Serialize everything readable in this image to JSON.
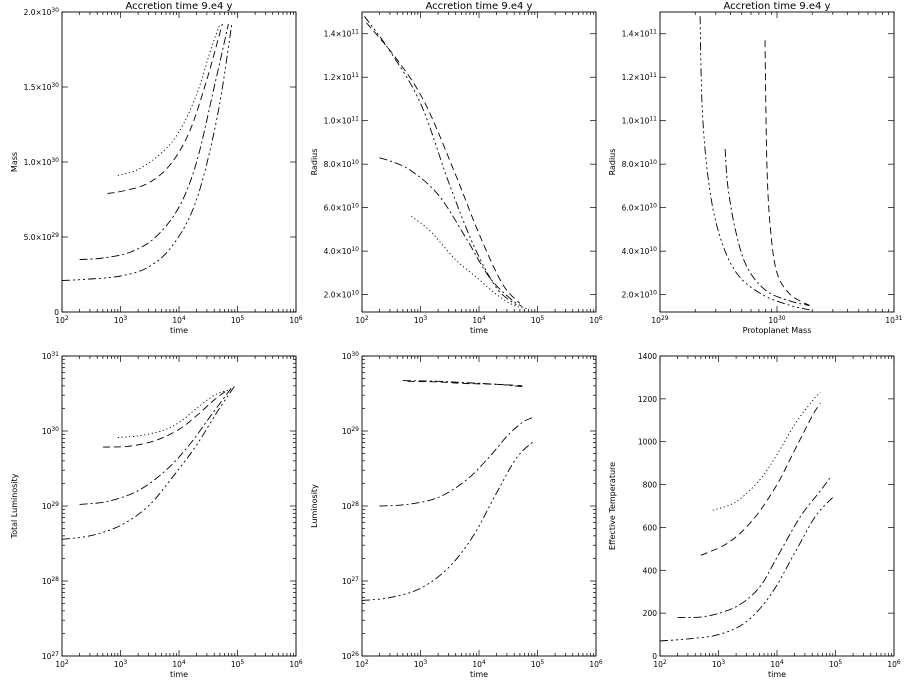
{
  "chart_data": [
    {
      "type": "line",
      "title": "Accretion time 9.e4 y",
      "xlabel": "time",
      "ylabel": "Mass",
      "xscale": "log",
      "yscale": "linear",
      "xlim": [
        100,
        1000000
      ],
      "ylim": [
        0,
        2e+30
      ],
      "xticks": [
        {
          "v": 100,
          "m": "10",
          "e": "2"
        },
        {
          "v": 1000,
          "m": "10",
          "e": "3"
        },
        {
          "v": 10000,
          "m": "10",
          "e": "4"
        },
        {
          "v": 100000,
          "m": "10",
          "e": "5"
        },
        {
          "v": 1000000,
          "m": "10",
          "e": "6"
        }
      ],
      "yticks": [
        {
          "v": 0,
          "m": "0",
          "e": ""
        },
        {
          "v": 5e+29,
          "m": "5.0×10",
          "e": "29"
        },
        {
          "v": 1e+30,
          "m": "1.0×10",
          "e": "30"
        },
        {
          "v": 1.5e+30,
          "m": "1.5×10",
          "e": "30"
        },
        {
          "v": 2e+30,
          "m": "2.0×10",
          "e": "30"
        }
      ],
      "series": [
        {
          "dash": "1.2,2.6",
          "x": [
            900,
            2000,
            5000,
            10000,
            20000,
            35000,
            50000
          ],
          "y": [
            9.1e+29,
            9.5e+29,
            1.06e+30,
            1.2e+30,
            1.45e+30,
            1.75e+30,
            1.92e+30
          ]
        },
        {
          "dash": "7,4",
          "x": [
            600,
            1200,
            3000,
            7000,
            15000,
            30000,
            55000
          ],
          "y": [
            7.9e+29,
            8.1e+29,
            8.6e+29,
            9.8e+29,
            1.2e+30,
            1.55e+30,
            1.92e+30
          ]
        },
        {
          "dash": "8,3,2,3",
          "x": [
            200,
            500,
            1500,
            4000,
            10000,
            20000,
            40000,
            70000
          ],
          "y": [
            3.5e+29,
            3.6e+29,
            4e+29,
            5e+29,
            7e+29,
            1e+30,
            1.5e+30,
            1.92e+30
          ]
        },
        {
          "dash": "8,3,2,3,2,3,2,3",
          "x": [
            100,
            300,
            1000,
            3000,
            8000,
            20000,
            45000,
            80000
          ],
          "y": [
            2.1e+29,
            2.2e+29,
            2.4e+29,
            3e+29,
            4.5e+29,
            7.5e+29,
            1.3e+30,
            1.92e+30
          ]
        }
      ]
    },
    {
      "type": "line",
      "title": "Accretion time 9.e4 y",
      "xlabel": "time",
      "ylabel": "Radius",
      "xscale": "log",
      "yscale": "linear",
      "xlim": [
        100,
        1000000
      ],
      "ylim": [
        12000000000.0,
        150000000000.0
      ],
      "xticks": [
        {
          "v": 100,
          "m": "10",
          "e": "2"
        },
        {
          "v": 1000,
          "m": "10",
          "e": "3"
        },
        {
          "v": 10000,
          "m": "10",
          "e": "4"
        },
        {
          "v": 100000,
          "m": "10",
          "e": "5"
        },
        {
          "v": 1000000,
          "m": "10",
          "e": "6"
        }
      ],
      "yticks": [
        {
          "v": 20000000000.0,
          "m": "2.0×10",
          "e": "10"
        },
        {
          "v": 40000000000.0,
          "m": "4.0×10",
          "e": "10"
        },
        {
          "v": 60000000000.0,
          "m": "6.0×10",
          "e": "10"
        },
        {
          "v": 80000000000.0,
          "m": "8.0×10",
          "e": "10"
        },
        {
          "v": 100000000000.0,
          "m": "1.0×10",
          "e": "11"
        },
        {
          "v": 120000000000.0,
          "m": "1.2×10",
          "e": "11"
        },
        {
          "v": 140000000000.0,
          "m": "1.4×10",
          "e": "11"
        }
      ],
      "series": [
        {
          "dash": "1.2,2.6",
          "x": [
            700,
            1500,
            4000,
            10000,
            20000,
            40000,
            70000
          ],
          "y": [
            56000000000.0,
            49000000000.0,
            36000000000.0,
            27000000000.0,
            20000000000.0,
            15000000000.0,
            13500000000.0
          ]
        },
        {
          "dash": "7,4",
          "x": [
            120,
            400,
            1200,
            4000,
            10000,
            25000,
            50000
          ],
          "y": [
            145000000000.0,
            128000000000.0,
            108000000000.0,
            75000000000.0,
            48000000000.0,
            25000000000.0,
            16000000000.0
          ]
        },
        {
          "dash": "8,3,2,3",
          "x": [
            200,
            600,
            2000,
            6000,
            15000,
            35000,
            55000
          ],
          "y": [
            83000000000.0,
            78000000000.0,
            66000000000.0,
            46000000000.0,
            28000000000.0,
            18000000000.0,
            14500000000.0
          ]
        },
        {
          "dash": "8,3,2,3,2,3,2,3",
          "x": [
            110,
            300,
            1000,
            3000,
            8000,
            20000,
            45000
          ],
          "y": [
            148000000000.0,
            132000000000.0,
            108000000000.0,
            72000000000.0,
            43000000000.0,
            23000000000.0,
            15000000000.0
          ]
        }
      ]
    },
    {
      "type": "line",
      "title": "Accretion time 9.e4 y",
      "xlabel": "Protoplanet Mass",
      "ylabel": "Radius",
      "xscale": "log",
      "yscale": "linear",
      "xlim": [
        1e+29,
        1e+31
      ],
      "ylim": [
        12000000000.0,
        150000000000.0
      ],
      "xticks": [
        {
          "v": 1e+29,
          "m": "10",
          "e": "29"
        },
        {
          "v": 1e+30,
          "m": "10",
          "e": "30"
        },
        {
          "v": 1e+31,
          "m": "10",
          "e": "31"
        }
      ],
      "yticks": [
        {
          "v": 20000000000.0,
          "m": "2.0×10",
          "e": "10"
        },
        {
          "v": 40000000000.0,
          "m": "4.0×10",
          "e": "10"
        },
        {
          "v": 60000000000.0,
          "m": "6.0×10",
          "e": "10"
        },
        {
          "v": 80000000000.0,
          "m": "8.0×10",
          "e": "10"
        },
        {
          "v": 100000000000.0,
          "m": "1.0×10",
          "e": "11"
        },
        {
          "v": 120000000000.0,
          "m": "1.2×10",
          "e": "11"
        },
        {
          "v": 140000000000.0,
          "m": "1.4×10",
          "e": "11"
        }
      ],
      "series": [
        {
          "dash": "7,4",
          "x": [
            7.9e+29,
            8.2e+29,
            8.8e+29,
            1e+30,
            1.3e+30,
            1.9e+30
          ],
          "y": [
            137000000000.0,
            80000000000.0,
            50000000000.0,
            30000000000.0,
            20000000000.0,
            15000000000.0
          ]
        },
        {
          "dash": "8,3,2,3",
          "x": [
            3.6e+29,
            3.8e+29,
            4.4e+29,
            5.5e+29,
            8e+29,
            1.3e+30,
            1.9e+30
          ],
          "y": [
            87000000000.0,
            70000000000.0,
            50000000000.0,
            33000000000.0,
            22000000000.0,
            17000000000.0,
            15000000000.0
          ]
        },
        {
          "dash": "8,3,2,3,2,3,2,3",
          "x": [
            2.2e+29,
            2.3e+29,
            2.6e+29,
            3.2e+29,
            4.5e+29,
            7.5e+29,
            1.3e+30,
            1.9e+30
          ],
          "y": [
            148000000000.0,
            105000000000.0,
            72000000000.0,
            48000000000.0,
            30000000000.0,
            20000000000.0,
            15000000000.0,
            13000000000.0
          ]
        }
      ]
    },
    {
      "type": "line",
      "title": "",
      "xlabel": "time",
      "ylabel": "Total  Luminosity",
      "xscale": "log",
      "yscale": "log",
      "xlim": [
        100,
        1000000
      ],
      "ylim": [
        1e+27,
        1e+31
      ],
      "xticks": [
        {
          "v": 100,
          "m": "10",
          "e": "2"
        },
        {
          "v": 1000,
          "m": "10",
          "e": "3"
        },
        {
          "v": 10000,
          "m": "10",
          "e": "4"
        },
        {
          "v": 100000,
          "m": "10",
          "e": "5"
        },
        {
          "v": 1000000,
          "m": "10",
          "e": "6"
        }
      ],
      "yticks": [
        {
          "v": 1e+27,
          "m": "10",
          "e": "27"
        },
        {
          "v": 1e+28,
          "m": "10",
          "e": "28"
        },
        {
          "v": 1e+29,
          "m": "10",
          "e": "29"
        },
        {
          "v": 1e+30,
          "m": "10",
          "e": "30"
        },
        {
          "v": 1e+31,
          "m": "10",
          "e": "31"
        }
      ],
      "series": [
        {
          "dash": "1.2,2.6",
          "x": [
            900,
            2000,
            5000,
            10000,
            20000,
            40000,
            70000
          ],
          "y": [
            8.2e+29,
            8.6e+29,
            1e+30,
            1.3e+30,
            2e+30,
            3e+30,
            3.5e+30
          ]
        },
        {
          "dash": "7,4",
          "x": [
            500,
            1500,
            4000,
            10000,
            20000,
            40000,
            70000
          ],
          "y": [
            6.1e+29,
            6.3e+29,
            7.5e+29,
            1.05e+30,
            1.6e+30,
            2.6e+30,
            3.6e+30
          ]
        },
        {
          "dash": "8,3,2,3",
          "x": [
            200,
            600,
            2000,
            6000,
            15000,
            35000,
            80000
          ],
          "y": [
            1.05e+29,
            1.15e+29,
            1.6e+29,
            3e+29,
            6.5e+29,
            1.6e+30,
            3.8e+30
          ]
        },
        {
          "dash": "8,3,2,3,2,3,2,3",
          "x": [
            100,
            300,
            1000,
            3000,
            8000,
            20000,
            45000,
            90000
          ],
          "y": [
            3.6e+28,
            4e+28,
            5.5e+28,
            1e+29,
            2.5e+29,
            6.5e+29,
            1.8e+30,
            4e+30
          ]
        }
      ]
    },
    {
      "type": "line",
      "title": "",
      "xlabel": "time",
      "ylabel": "Luminosity",
      "xscale": "log",
      "yscale": "log",
      "xlim": [
        100,
        1000000
      ],
      "ylim": [
        1e+26,
        1e+30
      ],
      "xticks": [
        {
          "v": 100,
          "m": "10",
          "e": "2"
        },
        {
          "v": 1000,
          "m": "10",
          "e": "3"
        },
        {
          "v": 10000,
          "m": "10",
          "e": "4"
        },
        {
          "v": 100000,
          "m": "10",
          "e": "5"
        },
        {
          "v": 1000000,
          "m": "10",
          "e": "6"
        }
      ],
      "yticks": [
        {
          "v": 1e+26,
          "m": "10",
          "e": "26"
        },
        {
          "v": 1e+27,
          "m": "10",
          "e": "27"
        },
        {
          "v": 1e+28,
          "m": "10",
          "e": "28"
        },
        {
          "v": 1e+29,
          "m": "10",
          "e": "29"
        },
        {
          "v": 1e+30,
          "m": "10",
          "e": "30"
        }
      ],
      "series": [
        {
          "dash": "7,4",
          "x": [
            600,
            2000,
            6000,
            20000,
            55000
          ],
          "y": [
            4.6e+29,
            4.5e+29,
            4.3e+29,
            4.2e+29,
            4e+29
          ]
        },
        {
          "dash": "8,3,2,3",
          "x": [
            500,
            2000,
            6000,
            20000,
            55000
          ],
          "y": [
            4.7e+29,
            4.6e+29,
            4.4e+29,
            4.2e+29,
            3.9e+29
          ]
        },
        {
          "dash": "8,3,2,3",
          "x": [
            200,
            600,
            2000,
            6000,
            15000,
            30000,
            55000,
            80000
          ],
          "y": [
            1e+28,
            1.05e+28,
            1.3e+28,
            2.2e+28,
            4.5e+28,
            8.5e+28,
            1.3e+29,
            1.5e+29
          ]
        },
        {
          "dash": "8,3,2,3,2,3,2,3",
          "x": [
            100,
            300,
            1000,
            3000,
            8000,
            20000,
            45000,
            90000
          ],
          "y": [
            5.5e+26,
            6e+26,
            8e+26,
            1.5e+27,
            4e+27,
            1.5e+28,
            4.5e+28,
            7.5e+28
          ]
        }
      ]
    },
    {
      "type": "line",
      "title": "",
      "xlabel": "time",
      "ylabel": "Effective Temperature",
      "xscale": "log",
      "yscale": "linear",
      "xlim": [
        100,
        1000000
      ],
      "ylim": [
        0,
        1400
      ],
      "xticks": [
        {
          "v": 100,
          "m": "10",
          "e": "2"
        },
        {
          "v": 1000,
          "m": "10",
          "e": "3"
        },
        {
          "v": 10000,
          "m": "10",
          "e": "4"
        },
        {
          "v": 100000,
          "m": "10",
          "e": "5"
        },
        {
          "v": 1000000,
          "m": "10",
          "e": "6"
        }
      ],
      "yticks": [
        {
          "v": 0,
          "m": "0",
          "e": ""
        },
        {
          "v": 200,
          "m": "200",
          "e": ""
        },
        {
          "v": 400,
          "m": "400",
          "e": ""
        },
        {
          "v": 600,
          "m": "600",
          "e": ""
        },
        {
          "v": 800,
          "m": "800",
          "e": ""
        },
        {
          "v": 1000,
          "m": "1000",
          "e": ""
        },
        {
          "v": 1200,
          "m": "1200",
          "e": ""
        },
        {
          "v": 1400,
          "m": "1400",
          "e": ""
        }
      ],
      "series": [
        {
          "dash": "1.2,2.6",
          "x": [
            800,
            2000,
            5000,
            10000,
            20000,
            40000,
            55000
          ],
          "y": [
            680,
            720,
            820,
            940,
            1080,
            1190,
            1230
          ]
        },
        {
          "dash": "7,4",
          "x": [
            500,
            1500,
            4000,
            10000,
            20000,
            40000,
            55000
          ],
          "y": [
            470,
            530,
            640,
            800,
            960,
            1120,
            1180
          ]
        },
        {
          "dash": "8,3,2,3",
          "x": [
            200,
            600,
            2000,
            5000,
            10000,
            25000,
            55000,
            80000
          ],
          "y": [
            180,
            185,
            230,
            320,
            460,
            650,
            770,
            830
          ]
        },
        {
          "dash": "8,3,2,3,2,3,2,3",
          "x": [
            100,
            300,
            1000,
            3000,
            8000,
            20000,
            45000,
            90000
          ],
          "y": [
            70,
            80,
            100,
            160,
            290,
            480,
            650,
            740
          ]
        }
      ]
    }
  ]
}
